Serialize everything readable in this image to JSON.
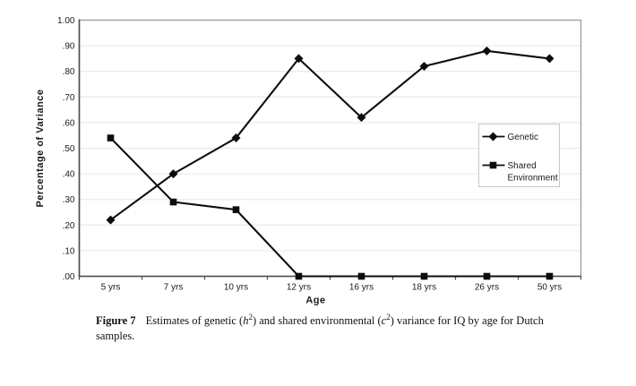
{
  "chart_data": {
    "type": "line",
    "categories": [
      "5  yrs",
      "7  yrs",
      "10  yrs",
      "12  yrs",
      "16  yrs",
      "18  yrs",
      "26  yrs",
      "50  yrs"
    ],
    "series": [
      {
        "name": "Genetic",
        "marker": "diamond",
        "color": "#000000",
        "values": [
          0.22,
          0.4,
          0.54,
          0.85,
          0.62,
          0.82,
          0.88,
          0.85
        ]
      },
      {
        "name": "Shared Environment",
        "marker": "square",
        "color": "#000000",
        "values": [
          0.54,
          0.29,
          0.26,
          0.0,
          0.0,
          0.0,
          0.0,
          0.0
        ]
      }
    ],
    "title": "",
    "xlabel": "Age",
    "ylabel": "Percentage of Variance",
    "ylim": [
      0,
      1
    ],
    "ytick_step": 0.1,
    "ytick_labels": [
      "1.00",
      ".90",
      ".80",
      ".70",
      ".60",
      ".50",
      ".40",
      ".30",
      ".20",
      ".10",
      ".00"
    ],
    "grid": "horizontal",
    "legend_position": "middle-right",
    "legend": [
      {
        "marker": "diamond",
        "label_lines": [
          "Genetic"
        ]
      },
      {
        "marker": "square",
        "label_lines": [
          "Shared",
          "Environment"
        ]
      }
    ],
    "colors": {
      "line": "#0d0d0d",
      "gridline": "#e6e6e6",
      "axis": "#4d4d4d",
      "plot_border": "#9e9e9e",
      "legend_border": "#c8c8c8",
      "tick_text": "#1a1a1a",
      "background": "#ffffff"
    }
  },
  "caption": {
    "label": "Figure 7",
    "segments": [
      {
        "t": "Estimates of genetic ("
      },
      {
        "t": "h",
        "italic": true
      },
      {
        "t": "2",
        "sup": true
      },
      {
        "t": ") and shared environmental ("
      },
      {
        "t": "c",
        "italic": true
      },
      {
        "t": "2",
        "sup": true
      },
      {
        "t": ") variance for IQ by age for Dutch samples."
      }
    ]
  }
}
